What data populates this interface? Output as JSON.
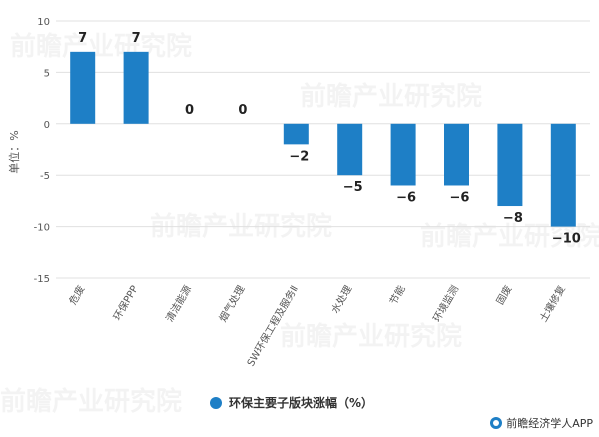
{
  "chart_data": {
    "type": "bar",
    "categories": [
      "危废",
      "环保PPP",
      "清洁能源",
      "烟气处理",
      "SW环保工程及服务Ⅱ",
      "水处理",
      "节能",
      "环境监测",
      "固废",
      "土壤修复"
    ],
    "series": [
      {
        "name": "环保主要子版块涨幅（%）",
        "values": [
          7,
          7,
          0,
          0,
          -2,
          -5,
          -6,
          -6,
          -8,
          -10
        ]
      }
    ],
    "data_labels": [
      "7",
      "7",
      "0",
      "0",
      "−2",
      "−5",
      "−6",
      "−6",
      "−8",
      "−10"
    ],
    "ylabel": "单位：%",
    "ylim": [
      -15,
      10
    ],
    "yticks": [
      10,
      5,
      0,
      -5,
      -10,
      -15
    ],
    "grid": true,
    "legend_position": "bottom",
    "bar_color": "#1e7fc6"
  },
  "legend": {
    "label": "环保主要子版块涨幅（%）"
  },
  "footer": {
    "text": "前瞻经济学人APP"
  },
  "watermark": {
    "text": "前瞻产业研究院"
  }
}
